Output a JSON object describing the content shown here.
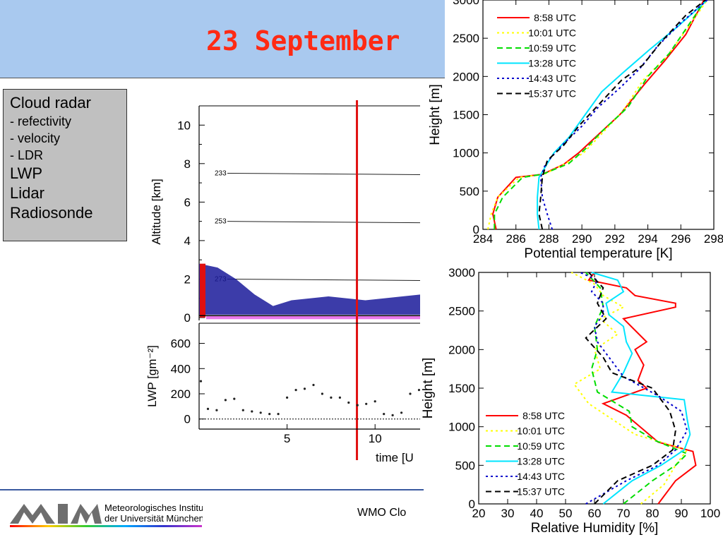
{
  "slide": {
    "title": "23 September",
    "footer_text": "WMO Clo"
  },
  "instruments": {
    "items": [
      {
        "text": "Cloud radar",
        "size": "lg"
      },
      {
        "text": "- refectivity",
        "size": "sm"
      },
      {
        "text": "- velocity",
        "size": "sm"
      },
      {
        "text": "- LDR",
        "size": "sm"
      },
      {
        "text": "LWP",
        "size": "lg"
      },
      {
        "text": "Lidar",
        "size": "lg"
      },
      {
        "text": "Radiosonde",
        "size": "lg"
      }
    ]
  },
  "logo": {
    "line1": "Meteorologisches Institut",
    "line2": "der Universität München"
  },
  "colors": {
    "title": "#ff2a14",
    "banner": "#a9c9ef",
    "footer_line": "#3a5aa0"
  },
  "chart_data": [
    {
      "type": "heatmap",
      "panel": "radar-altitude",
      "ylabel": "Altitude [km]",
      "yticks": [
        0,
        2,
        4,
        6,
        8,
        10
      ],
      "ylim": [
        0,
        11
      ],
      "xlim": [
        0,
        12.6
      ],
      "isotherms": [
        {
          "label": "233",
          "altitude_km": 7.5
        },
        {
          "label": "253",
          "altitude_km": 5.0
        },
        {
          "label": "273",
          "altitude_km": 2.0
        }
      ],
      "radar_echo_top_km": [
        2.8,
        2.6,
        2.0,
        1.2,
        0.6,
        0.9,
        1.0,
        1.1,
        1.0,
        0.9,
        1.0,
        1.1,
        1.2
      ],
      "marker_time_utc": 8.97
    },
    {
      "type": "scatter",
      "panel": "lwp",
      "ylabel": "LWP [gm⁻²]",
      "xlabel": "time [U",
      "xticks": [
        5,
        10
      ],
      "yticks": [
        0,
        200,
        400,
        600
      ],
      "ylim": [
        -80,
        760
      ],
      "xlim": [
        0,
        12.6
      ],
      "time_utc": [
        0.1,
        0.5,
        1.0,
        1.5,
        2.0,
        2.5,
        3.0,
        3.5,
        4.0,
        4.5,
        5.0,
        5.5,
        6.0,
        6.5,
        7.0,
        7.5,
        8.0,
        8.5,
        9.0,
        9.5,
        10.0,
        10.5,
        11.0,
        11.5,
        12.0,
        12.5
      ],
      "lwp_gm2": [
        300,
        80,
        70,
        150,
        160,
        70,
        60,
        50,
        40,
        40,
        170,
        230,
        240,
        270,
        200,
        170,
        170,
        130,
        110,
        120,
        140,
        40,
        30,
        50,
        200,
        230
      ],
      "marker_time_utc": 8.97
    },
    {
      "type": "line",
      "panel": "potential-temperature",
      "xlabel": "Potential temperature [K]",
      "ylabel": "Height [m]",
      "xlim": [
        284,
        298
      ],
      "ylim": [
        0,
        3000
      ],
      "xticks": [
        284,
        286,
        288,
        290,
        292,
        294,
        296,
        298
      ],
      "yticks": [
        0,
        500,
        1000,
        1500,
        2000,
        2500,
        3000
      ],
      "legend_position": "top-left",
      "series": [
        {
          "name": "8:58 UTC",
          "color": "#ff0000",
          "dash": "solid",
          "x": [
            284.8,
            284.6,
            284.9,
            286.0,
            287.6,
            288.9,
            289.8,
            290.8,
            292.3,
            293.8,
            295.0,
            296.3,
            297.4
          ],
          "y": [
            0,
            200,
            420,
            680,
            720,
            850,
            1000,
            1200,
            1500,
            1900,
            2200,
            2550,
            3000
          ]
        },
        {
          "name": "10:01 UTC",
          "color": "#ffff00",
          "dash": "dotted",
          "x": [
            284.3,
            284.5,
            284.9,
            286.2,
            287.7,
            289.0,
            290.1,
            291.2,
            292.5,
            293.7,
            295.1,
            296.3,
            297.6
          ],
          "y": [
            0,
            200,
            420,
            680,
            720,
            860,
            1000,
            1250,
            1550,
            1950,
            2250,
            2600,
            3000
          ]
        },
        {
          "name": "10:59 UTC",
          "color": "#00dd00",
          "dash": "dashed",
          "x": [
            284.7,
            284.7,
            285.2,
            286.4,
            287.6,
            289.2,
            290.2,
            291.3,
            292.8,
            294.0,
            295.3,
            296.4,
            297.5
          ],
          "y": [
            0,
            200,
            420,
            680,
            720,
            860,
            1050,
            1300,
            1600,
            2000,
            2300,
            2650,
            3000
          ]
        },
        {
          "name": "13:28 UTC",
          "color": "#00e5ff",
          "dash": "solid",
          "x": [
            287.4,
            287.3,
            287.3,
            287.4,
            287.9,
            288.3,
            289.2,
            290.2,
            291.2,
            292.5,
            294.1,
            295.8,
            297.6
          ],
          "y": [
            0,
            200,
            420,
            680,
            860,
            1000,
            1200,
            1500,
            1800,
            2050,
            2350,
            2650,
            3000
          ]
        },
        {
          "name": "14:43 UTC",
          "color": "#0000cc",
          "dash": "dotted",
          "x": [
            288.2,
            287.9,
            287.6,
            287.5,
            287.8,
            288.8,
            290.0,
            291.0,
            292.3,
            293.5,
            294.6,
            296.0,
            297.6
          ],
          "y": [
            0,
            200,
            420,
            680,
            860,
            1100,
            1350,
            1600,
            1850,
            2100,
            2400,
            2700,
            3000
          ]
        },
        {
          "name": "15:37 UTC",
          "color": "#000000",
          "dash": "dashed",
          "x": [
            287.6,
            287.4,
            287.5,
            287.6,
            287.9,
            288.9,
            289.8,
            291.1,
            292.4,
            293.7,
            294.8,
            296.3,
            297.5
          ],
          "y": [
            0,
            200,
            420,
            680,
            900,
            1100,
            1350,
            1650,
            1950,
            2150,
            2450,
            2800,
            3000
          ]
        }
      ]
    },
    {
      "type": "line",
      "panel": "relative-humidity",
      "xlabel": "Relative Humidity [%]",
      "ylabel": "Height [m]",
      "xlim": [
        20,
        100
      ],
      "ylim": [
        0,
        3000
      ],
      "xticks": [
        20,
        30,
        40,
        50,
        60,
        70,
        80,
        90,
        100
      ],
      "yticks": [
        0,
        500,
        1000,
        1500,
        2000,
        2500,
        3000
      ],
      "legend_position": "bottom-left",
      "series": [
        {
          "name": "8:58 UTC",
          "color": "#ff0000",
          "dash": "solid",
          "x": [
            82,
            88,
            95,
            94,
            82,
            71,
            63,
            78,
            75,
            77,
            74,
            78,
            70,
            88,
            88,
            74,
            71,
            58,
            60
          ],
          "y": [
            0,
            300,
            500,
            680,
            800,
            1150,
            1300,
            1500,
            1600,
            1800,
            2000,
            2100,
            2400,
            2550,
            2600,
            2700,
            2800,
            2900,
            3000
          ]
        },
        {
          "name": "10:01 UTC",
          "color": "#ffff00",
          "dash": "dotted",
          "x": [
            76,
            84,
            88,
            92,
            74,
            58,
            53,
            62,
            60,
            68,
            62,
            70,
            63,
            60,
            52
          ],
          "y": [
            0,
            250,
            500,
            700,
            900,
            1300,
            1550,
            1750,
            2000,
            2200,
            2400,
            2550,
            2700,
            2850,
            3000
          ]
        },
        {
          "name": "10:59 UTC",
          "color": "#00dd00",
          "dash": "dashed",
          "x": [
            70,
            80,
            88,
            92,
            81,
            73,
            72,
            61,
            59,
            61,
            60,
            63,
            62,
            57
          ],
          "y": [
            0,
            300,
            500,
            650,
            820,
            1000,
            1200,
            1450,
            1750,
            2000,
            2300,
            2550,
            2800,
            3000
          ]
        },
        {
          "name": "13:28 UTC",
          "color": "#00e5ff",
          "dash": "solid",
          "x": [
            63,
            73,
            83,
            91,
            93,
            92,
            91,
            66,
            70,
            73,
            71,
            70,
            65,
            64,
            70,
            68,
            59
          ],
          "y": [
            0,
            300,
            500,
            700,
            900,
            1100,
            1350,
            1450,
            1700,
            1950,
            2100,
            2300,
            2450,
            2600,
            2750,
            2900,
            3000
          ]
        },
        {
          "name": "14:43 UTC",
          "color": "#0000cc",
          "dash": "dotted",
          "x": [
            57,
            71,
            82,
            88,
            92,
            90,
            82,
            70,
            66,
            61,
            60,
            63,
            63,
            59,
            61,
            55
          ],
          "y": [
            0,
            300,
            500,
            700,
            950,
            1200,
            1400,
            1650,
            1850,
            2100,
            2300,
            2450,
            2600,
            2750,
            2900,
            3000
          ]
        },
        {
          "name": "15:37 UTC",
          "color": "#000000",
          "dash": "dashed",
          "x": [
            60,
            68,
            80,
            87,
            88,
            86,
            80,
            66,
            63,
            57,
            64,
            61,
            63,
            58
          ],
          "y": [
            0,
            300,
            500,
            700,
            950,
            1200,
            1500,
            1700,
            1900,
            2150,
            2400,
            2600,
            2800,
            3000
          ]
        }
      ]
    }
  ]
}
